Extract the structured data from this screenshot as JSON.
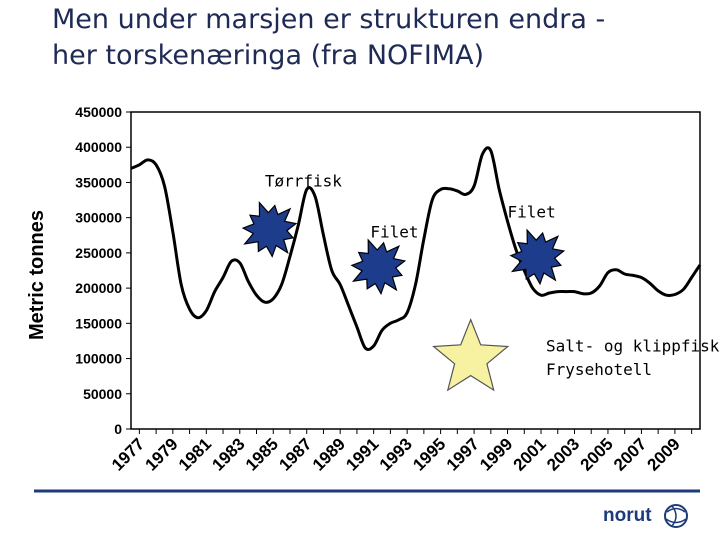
{
  "title": {
    "line1": "Men under marsjen er strukturen endra  -",
    "line2": "her torskenæringa (fra NOFIMA)"
  },
  "colors": {
    "title": "#1f2a55",
    "line": "#000000",
    "burst": "#1e3c8c",
    "star": "#f6f2a2",
    "rule": "#1d3a7a"
  },
  "logo": {
    "text": "norut"
  },
  "chart_data": {
    "type": "line",
    "title": "",
    "xlabel": "",
    "ylabel": "Metric tonnes",
    "xlim": [
      1976.5,
      2010.5
    ],
    "ylim": [
      0,
      450000
    ],
    "yticks": [
      0,
      50000,
      100000,
      150000,
      200000,
      250000,
      300000,
      350000,
      400000,
      450000
    ],
    "ytick_labels": [
      "0",
      "50000",
      "100000",
      "150000",
      "200000",
      "250000",
      "300000",
      "350000",
      "400000",
      "450000"
    ],
    "xtick_labels": [
      "1977",
      "1979",
      "1981",
      "1983",
      "1985",
      "1987",
      "1989",
      "1991",
      "1993",
      "1995",
      "1997",
      "1999",
      "2001",
      "2003",
      "2005",
      "2007",
      "2009"
    ],
    "grid": false,
    "series": [
      {
        "name": "Torskenæringa",
        "x": [
          1976.5,
          1977,
          1977.5,
          1978,
          1978.5,
          1979,
          1979.5,
          1980,
          1980.5,
          1981,
          1981.5,
          1982,
          1982.5,
          1983,
          1983.5,
          1984,
          1984.5,
          1985,
          1985.5,
          1986,
          1986.5,
          1987,
          1987.5,
          1988,
          1988.5,
          1989,
          1989.5,
          1990,
          1990.5,
          1991,
          1991.5,
          1992,
          1992.5,
          1993,
          1993.5,
          1994,
          1994.5,
          1995,
          1995.5,
          1996,
          1996.5,
          1997,
          1997.5,
          1998,
          1998.5,
          1999,
          1999.5,
          2000,
          2000.5,
          2001,
          2001.5,
          2002,
          2002.5,
          2003,
          2003.5,
          2004,
          2004.5,
          2005,
          2005.5,
          2006,
          2006.5,
          2007,
          2007.5,
          2008,
          2008.5,
          2009,
          2009.5,
          2010,
          2010.5
        ],
        "values": [
          370000,
          375000,
          382000,
          375000,
          345000,
          280000,
          205000,
          170000,
          158000,
          168000,
          195000,
          215000,
          238000,
          236000,
          210000,
          190000,
          180000,
          185000,
          205000,
          245000,
          290000,
          340000,
          330000,
          275000,
          225000,
          205000,
          175000,
          145000,
          115000,
          118000,
          140000,
          150000,
          155000,
          165000,
          205000,
          270000,
          325000,
          340000,
          341000,
          338000,
          333000,
          345000,
          390000,
          395000,
          340000,
          295000,
          255000,
          225000,
          200000,
          190000,
          193000,
          195000,
          195000,
          195000,
          192000,
          193000,
          203000,
          222000,
          226000,
          220000,
          218000,
          215000,
          207000,
          196000,
          190000,
          191000,
          198000,
          215000,
          233000
        ]
      }
    ],
    "annotations": [
      {
        "text": "Tørrfisk",
        "x": 1984.5,
        "y": 344000
      },
      {
        "text": "Filet",
        "x": 1990.8,
        "y": 272000
      },
      {
        "text": "Filet",
        "x": 1999.0,
        "y": 300000
      },
      {
        "text": "Salt- og klippfisk",
        "x": 2001.3,
        "y": 110000
      },
      {
        "text": "Frysehotell",
        "x": 2001.3,
        "y": 77000
      }
    ],
    "markers": [
      {
        "type": "burst",
        "x": 1984.8,
        "y": 283000
      },
      {
        "type": "burst",
        "x": 1991.3,
        "y": 230000
      },
      {
        "type": "burst",
        "x": 2000.8,
        "y": 244000
      },
      {
        "type": "star",
        "x": 1996.8,
        "y": 100000
      }
    ]
  }
}
